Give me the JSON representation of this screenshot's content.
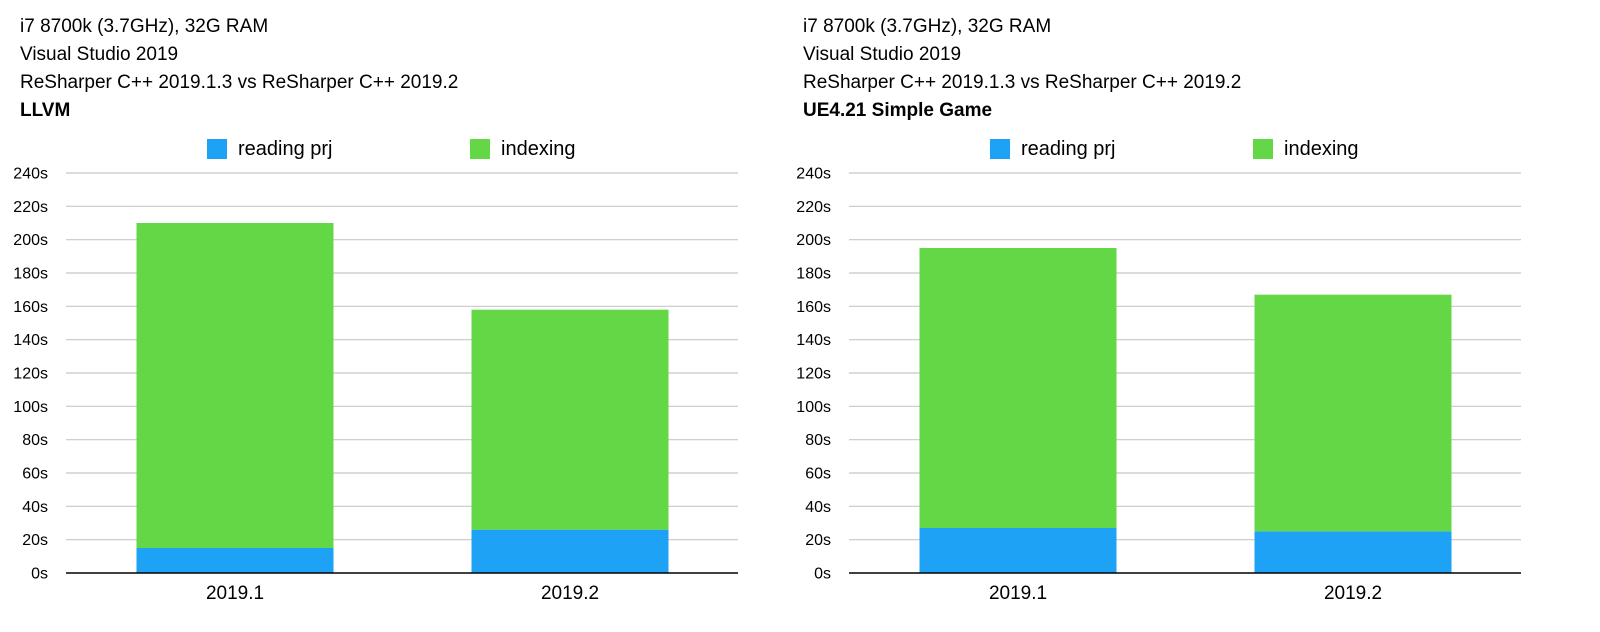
{
  "chart_data": [
    {
      "type": "bar",
      "stacked": true,
      "header": {
        "line1": "i7 8700k (3.7GHz), 32G RAM",
        "line2": "Visual Studio 2019",
        "line3": "ReSharper C++ 2019.1.3 vs ReSharper C++ 2019.2",
        "title": "LLVM"
      },
      "categories": [
        "2019.1",
        "2019.2"
      ],
      "series": [
        {
          "name": "reading prj",
          "values": [
            15,
            26
          ],
          "color": "#1ea2f6"
        },
        {
          "name": "indexing",
          "values": [
            195,
            132
          ],
          "color": "#64d746"
        }
      ],
      "ylim": [
        0,
        240
      ],
      "yticks": [
        0,
        20,
        40,
        60,
        80,
        100,
        120,
        140,
        160,
        180,
        200,
        220,
        240
      ],
      "ytick_labels": [
        "0s",
        "20s",
        "40s",
        "60s",
        "80s",
        "100s",
        "120s",
        "140s",
        "160s",
        "180s",
        "200s",
        "220s",
        "240s"
      ],
      "grid": true,
      "legend": "top"
    },
    {
      "type": "bar",
      "stacked": true,
      "header": {
        "line1": "i7 8700k (3.7GHz), 32G RAM",
        "line2": "Visual Studio 2019",
        "line3": "ReSharper C++ 2019.1.3 vs ReSharper C++ 2019.2",
        "title": "UE4.21 Simple Game"
      },
      "categories": [
        "2019.1",
        "2019.2"
      ],
      "series": [
        {
          "name": "reading prj",
          "values": [
            27,
            25
          ],
          "color": "#1ea2f6"
        },
        {
          "name": "indexing",
          "values": [
            168,
            142
          ],
          "color": "#64d746"
        }
      ],
      "ylim": [
        0,
        240
      ],
      "yticks": [
        0,
        20,
        40,
        60,
        80,
        100,
        120,
        140,
        160,
        180,
        200,
        220,
        240
      ],
      "ytick_labels": [
        "0s",
        "20s",
        "40s",
        "60s",
        "80s",
        "100s",
        "120s",
        "140s",
        "160s",
        "180s",
        "200s",
        "220s",
        "240s"
      ],
      "grid": true,
      "legend": "top"
    }
  ]
}
